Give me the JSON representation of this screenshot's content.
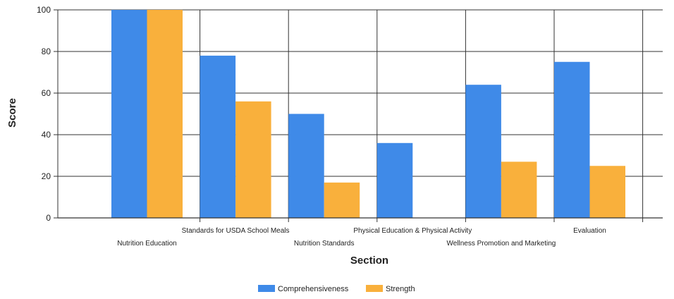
{
  "chart_data": {
    "type": "bar",
    "title": "",
    "xlabel": "Section",
    "ylabel": "Score",
    "ylim": [
      0,
      100
    ],
    "yticks": [
      0,
      20,
      40,
      60,
      80,
      100
    ],
    "grid": true,
    "legend_position": "bottom",
    "categories": [
      "Nutrition Education",
      "Standards for USDA School Meals",
      "Nutrition Standards",
      "Physical Education & Physical Activity",
      "Wellness Promotion and Marketing",
      "Evaluation"
    ],
    "series": [
      {
        "name": "Comprehensiveness",
        "color": "#3f8ae8",
        "values": [
          100,
          78,
          50,
          36,
          64,
          75
        ]
      },
      {
        "name": "Strength",
        "color": "#f9b03c",
        "values": [
          100,
          56,
          17,
          0,
          27,
          25
        ]
      }
    ]
  }
}
